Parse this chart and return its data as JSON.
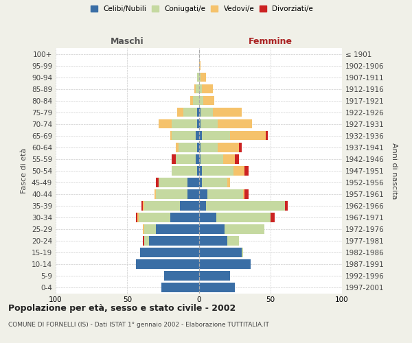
{
  "age_groups": [
    "0-4",
    "5-9",
    "10-14",
    "15-19",
    "20-24",
    "25-29",
    "30-34",
    "35-39",
    "40-44",
    "45-49",
    "50-54",
    "55-59",
    "60-64",
    "65-69",
    "70-74",
    "75-79",
    "80-84",
    "85-89",
    "90-94",
    "95-99",
    "100+"
  ],
  "birth_years": [
    "1997-2001",
    "1992-1996",
    "1987-1991",
    "1982-1986",
    "1977-1981",
    "1972-1976",
    "1967-1971",
    "1962-1966",
    "1957-1961",
    "1952-1956",
    "1947-1951",
    "1942-1946",
    "1937-1941",
    "1932-1936",
    "1927-1931",
    "1922-1926",
    "1917-1921",
    "1912-1916",
    "1907-1911",
    "1902-1906",
    "≤ 1901"
  ],
  "male_celibe": [
    26,
    24,
    44,
    41,
    35,
    30,
    20,
    13,
    8,
    8,
    1,
    2,
    1,
    2,
    1,
    1,
    0,
    0,
    0,
    0,
    0
  ],
  "male_coniugato": [
    0,
    0,
    0,
    0,
    3,
    8,
    22,
    25,
    22,
    20,
    18,
    14,
    13,
    17,
    18,
    10,
    4,
    2,
    1,
    0,
    0
  ],
  "male_vedovo": [
    0,
    0,
    0,
    0,
    0,
    1,
    1,
    1,
    1,
    0,
    0,
    0,
    2,
    1,
    9,
    4,
    2,
    1,
    0,
    0,
    0
  ],
  "male_divorziato": [
    0,
    0,
    0,
    0,
    1,
    0,
    1,
    1,
    0,
    2,
    0,
    3,
    0,
    0,
    0,
    0,
    0,
    0,
    0,
    0,
    0
  ],
  "fem_nubile": [
    25,
    22,
    36,
    30,
    20,
    18,
    12,
    5,
    6,
    2,
    2,
    1,
    1,
    2,
    1,
    1,
    0,
    0,
    0,
    0,
    0
  ],
  "fem_coniugata": [
    0,
    0,
    0,
    1,
    8,
    28,
    38,
    55,
    25,
    18,
    22,
    16,
    12,
    20,
    12,
    9,
    3,
    2,
    1,
    0,
    0
  ],
  "fem_vedova": [
    0,
    0,
    0,
    0,
    0,
    0,
    0,
    0,
    1,
    2,
    8,
    8,
    15,
    25,
    24,
    20,
    8,
    8,
    4,
    1,
    0
  ],
  "fem_divorziata": [
    0,
    0,
    0,
    0,
    0,
    0,
    3,
    2,
    3,
    0,
    3,
    3,
    2,
    1,
    0,
    0,
    0,
    0,
    0,
    0,
    0
  ],
  "colors": {
    "celibe": "#3a6ea5",
    "coniugato": "#c5d9a0",
    "vedovo": "#f5c26b",
    "divorziato": "#cc2222"
  },
  "xlim": 100,
  "title": "Popolazione per età, sesso e stato civile - 2002",
  "subtitle": "COMUNE DI FORNELLI (IS) - Dati ISTAT 1° gennaio 2002 - Elaborazione TUTTITALIA.IT",
  "ylabel_left": "Fasce di età",
  "ylabel_right": "Anni di nascita",
  "xlabel_maschi": "Maschi",
  "xlabel_femmine": "Femmine",
  "bg_color": "#f0f0e8",
  "plot_bg": "#ffffff",
  "grid_color": "#cccccc",
  "legend_labels": [
    "Celibi/Nubili",
    "Coniugati/e",
    "Vedovi/e",
    "Divorziati/e"
  ]
}
